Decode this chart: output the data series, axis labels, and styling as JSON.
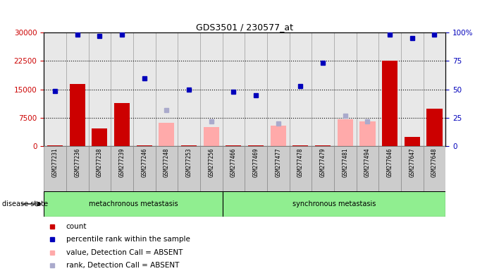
{
  "title": "GDS3501 / 230577_at",
  "samples": [
    "GSM277231",
    "GSM277236",
    "GSM277238",
    "GSM277239",
    "GSM277246",
    "GSM277248",
    "GSM277253",
    "GSM277256",
    "GSM277466",
    "GSM277469",
    "GSM277477",
    "GSM277478",
    "GSM277479",
    "GSM277481",
    "GSM277494",
    "GSM277646",
    "GSM277647",
    "GSM277648"
  ],
  "group1_label": "metachronous metastasis",
  "group2_label": "synchronous metastasis",
  "group1_count": 8,
  "group2_count": 10,
  "ylim_left": [
    0,
    30000
  ],
  "ylim_right": [
    0,
    100
  ],
  "yticks_left": [
    0,
    7500,
    15000,
    22500,
    30000
  ],
  "yticks_right": [
    0,
    25,
    50,
    75,
    100
  ],
  "red_bars": [
    200,
    16500,
    4800,
    11500,
    300,
    200,
    200,
    200,
    200,
    200,
    200,
    200,
    300,
    200,
    200,
    22500,
    2500,
    10000
  ],
  "blue_squares": [
    14500,
    29500,
    29000,
    29500,
    18000,
    null,
    15000,
    null,
    14300,
    13500,
    null,
    15800,
    22000,
    null,
    null,
    29500,
    28500,
    29500
  ],
  "pink_bars_value": [
    null,
    null,
    null,
    null,
    null,
    6200,
    null,
    5000,
    null,
    null,
    5500,
    null,
    null,
    7200,
    6500,
    null,
    null,
    null
  ],
  "lavender_squares": [
    null,
    null,
    null,
    null,
    null,
    9500,
    null,
    6500,
    null,
    null,
    6000,
    null,
    null,
    8000,
    6500,
    null,
    null,
    null
  ],
  "bar_color": "#CC0000",
  "blue_color": "#0000BB",
  "pink_color": "#FFAAAA",
  "lavender_color": "#AAAACC",
  "plot_bg": "#E8E8E8",
  "label_area_bg": "#D0D0D0",
  "green_bg": "#90EE90",
  "left_tick_color": "#CC0000",
  "right_tick_color": "#0000BB",
  "fig_bg": "#FFFFFF"
}
